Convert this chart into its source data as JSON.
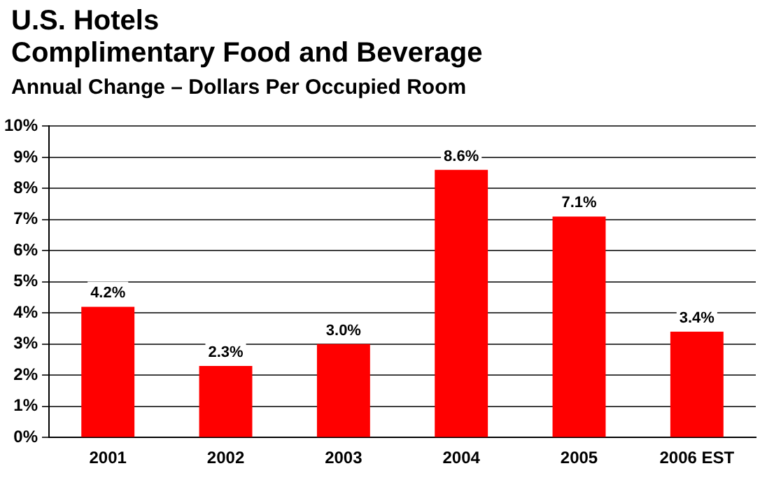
{
  "chart_data": {
    "type": "bar",
    "title": "U.S. Hotels\nComplimentary Food and Beverage",
    "subtitle": "Annual Change – Dollars Per Occupied Room",
    "categories": [
      "2001",
      "2002",
      "2003",
      "2004",
      "2005",
      "2006 EST"
    ],
    "values": [
      4.2,
      2.3,
      3.0,
      8.6,
      7.1,
      3.4
    ],
    "value_labels": [
      "4.2%",
      "2.3%",
      "3.0%",
      "8.6%",
      "7.1%",
      "3.4%"
    ],
    "color": "#ff0000",
    "ylim": [
      0,
      10
    ],
    "yticks": [
      {
        "value": 0,
        "label": "0%"
      },
      {
        "value": 1,
        "label": "1%"
      },
      {
        "value": 2,
        "label": "2%"
      },
      {
        "value": 3,
        "label": "3%"
      },
      {
        "value": 4,
        "label": "4%"
      },
      {
        "value": 5,
        "label": "5%"
      },
      {
        "value": 6,
        "label": "6%"
      },
      {
        "value": 7,
        "label": "7%"
      },
      {
        "value": 8,
        "label": "8%"
      },
      {
        "value": 9,
        "label": "9%"
      },
      {
        "value": 10,
        "label": "10%"
      }
    ],
    "grid": "y"
  }
}
